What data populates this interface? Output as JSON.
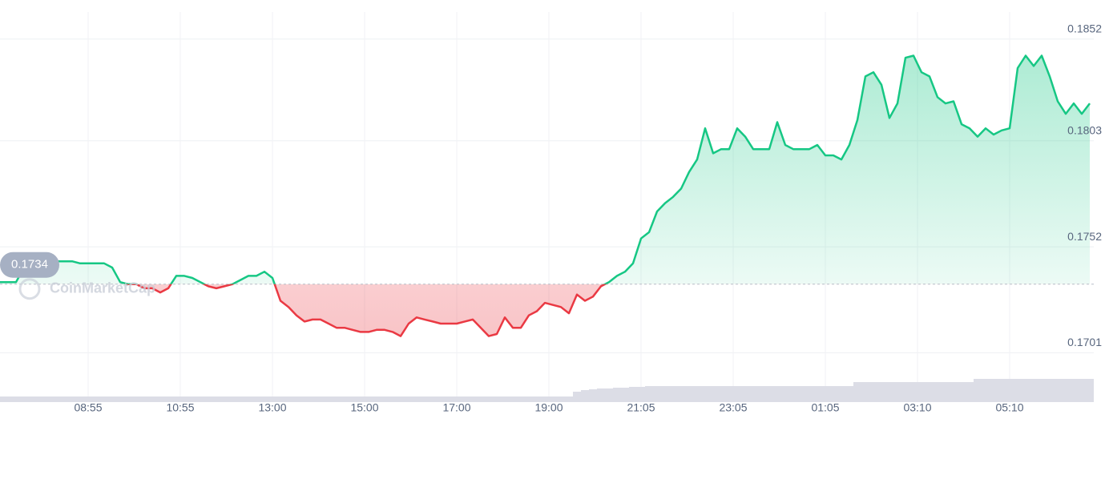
{
  "chart_data": {
    "type": "line",
    "baseline": 0.1734,
    "watermark": "CoinMarketCap",
    "colors": {
      "up": "#16c784",
      "down": "#ea3943",
      "volume": "#dcdde6"
    },
    "grid": true,
    "xlim": [
      0,
      136.5
    ],
    "xticks": [
      {
        "value": 11,
        "label": "08:55"
      },
      {
        "value": 22.5,
        "label": "10:55"
      },
      {
        "value": 34,
        "label": "13:00"
      },
      {
        "value": 45.5,
        "label": "15:00"
      },
      {
        "value": 57,
        "label": "17:00"
      },
      {
        "value": 68.5,
        "label": "19:00"
      },
      {
        "value": 80,
        "label": "21:05"
      },
      {
        "value": 91.5,
        "label": "23:05"
      },
      {
        "value": 103,
        "label": "01:05"
      },
      {
        "value": 114.5,
        "label": "03:10"
      },
      {
        "value": 126,
        "label": "05:10"
      }
    ],
    "ylim": [
      0.1678,
      0.1865
    ],
    "yticks": [
      0.1701,
      0.1752,
      0.1803,
      0.1852
    ],
    "values": [
      0.1735,
      0.1735,
      0.1735,
      0.1742,
      0.1742,
      0.1745,
      0.1745,
      0.1745,
      0.1745,
      0.1745,
      0.1744,
      0.1744,
      0.1744,
      0.1744,
      0.1742,
      0.1735,
      0.1734,
      0.1734,
      0.1732,
      0.1732,
      0.173,
      0.1732,
      0.1738,
      0.1738,
      0.1737,
      0.1735,
      0.1733,
      0.1732,
      0.1733,
      0.1734,
      0.1736,
      0.1738,
      0.1738,
      0.174,
      0.1737,
      0.1726,
      0.1723,
      0.1719,
      0.1716,
      0.1717,
      0.1717,
      0.1715,
      0.1713,
      0.1713,
      0.1712,
      0.1711,
      0.1711,
      0.1712,
      0.1712,
      0.1711,
      0.1709,
      0.1715,
      0.1718,
      0.1717,
      0.1716,
      0.1715,
      0.1715,
      0.1715,
      0.1716,
      0.1717,
      0.1713,
      0.1709,
      0.171,
      0.1718,
      0.1713,
      0.1713,
      0.1719,
      0.1721,
      0.1725,
      0.1724,
      0.1723,
      0.172,
      0.1729,
      0.1726,
      0.1728,
      0.1733,
      0.1735,
      0.1738,
      0.174,
      0.1744,
      0.1756,
      0.1759,
      0.1769,
      0.1773,
      0.1776,
      0.178,
      0.1788,
      0.1794,
      0.1809,
      0.1797,
      0.1799,
      0.1799,
      0.1809,
      0.1805,
      0.1799,
      0.1799,
      0.1799,
      0.1812,
      0.1801,
      0.1799,
      0.1799,
      0.1799,
      0.1801,
      0.1796,
      0.1796,
      0.1794,
      0.1801,
      0.1813,
      0.1834,
      0.1836,
      0.183,
      0.1814,
      0.1821,
      0.1843,
      0.1844,
      0.1836,
      0.1834,
      0.1824,
      0.1821,
      0.1822,
      0.1811,
      0.1809,
      0.1805,
      0.1809,
      0.1806,
      0.1808,
      0.1809,
      0.1838,
      0.1844,
      0.1839,
      0.1844,
      0.1834,
      0.1822,
      0.1816,
      0.1821,
      0.1816,
      0.1821
    ],
    "volume": {
      "ylim": [
        0,
        40
      ],
      "values": [
        7,
        7,
        7,
        7,
        7,
        7,
        7,
        7,
        7,
        7,
        7,
        7,
        7,
        7,
        7,
        7,
        7,
        7,
        7,
        7,
        7,
        7,
        7,
        7,
        7,
        7,
        7,
        7,
        7,
        7,
        7,
        7,
        7,
        7,
        7,
        7,
        7,
        7,
        7,
        7,
        7,
        7,
        7,
        7,
        7,
        7,
        7,
        7,
        7,
        7,
        7,
        7,
        7,
        7,
        7,
        7,
        7,
        7,
        7,
        7,
        7,
        7,
        7,
        7,
        7,
        7,
        7,
        7,
        7,
        7,
        7,
        7,
        13,
        15,
        16,
        17,
        17,
        18,
        18,
        19,
        19,
        20,
        20,
        20,
        20,
        20,
        20,
        20,
        20,
        20,
        20,
        20,
        20,
        20,
        20,
        20,
        20,
        20,
        20,
        20,
        20,
        20,
        20,
        20,
        20,
        20,
        20,
        25,
        25,
        25,
        25,
        25,
        25,
        25,
        25,
        25,
        25,
        25,
        25,
        25,
        25,
        25,
        29,
        29,
        29,
        29,
        29,
        29,
        29,
        29,
        29,
        29,
        29,
        29,
        29,
        29,
        29
      ]
    }
  }
}
